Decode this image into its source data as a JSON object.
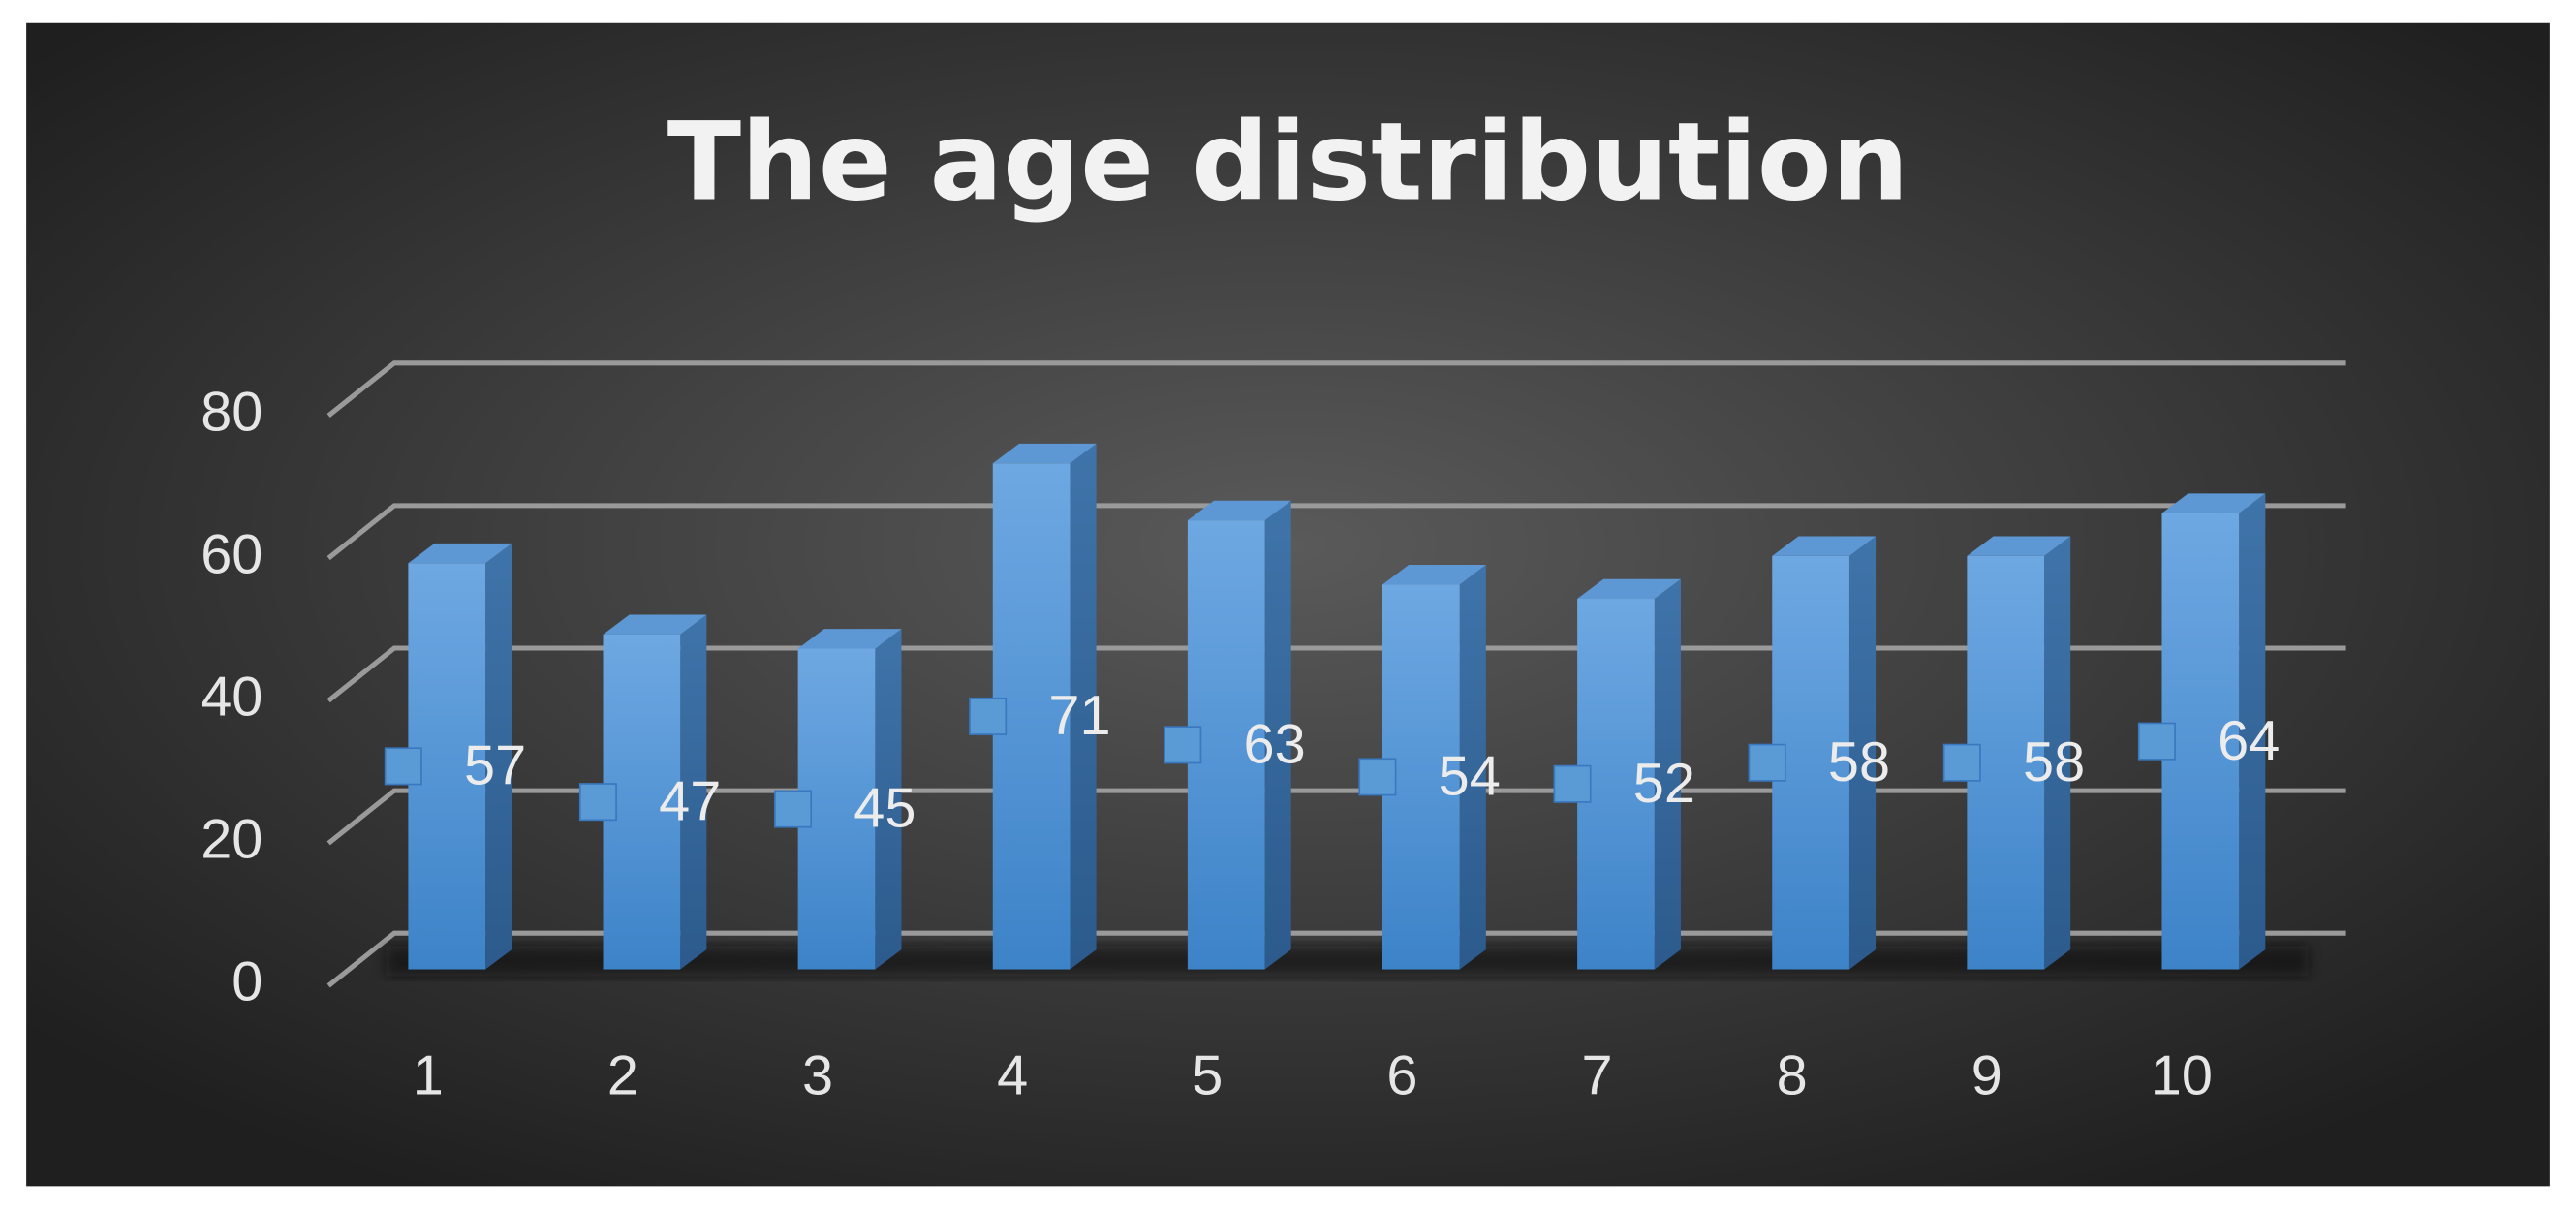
{
  "chart_data": {
    "type": "bar",
    "title": "The age distribution",
    "categories": [
      "1",
      "2",
      "3",
      "4",
      "5",
      "6",
      "7",
      "8",
      "9",
      "10"
    ],
    "values": [
      57,
      47,
      45,
      71,
      63,
      54,
      52,
      58,
      58,
      64
    ],
    "color": "#5b9bd5",
    "ylim": [
      0,
      80
    ],
    "yticks": [
      0,
      20,
      40,
      60,
      80
    ],
    "grid": true
  }
}
